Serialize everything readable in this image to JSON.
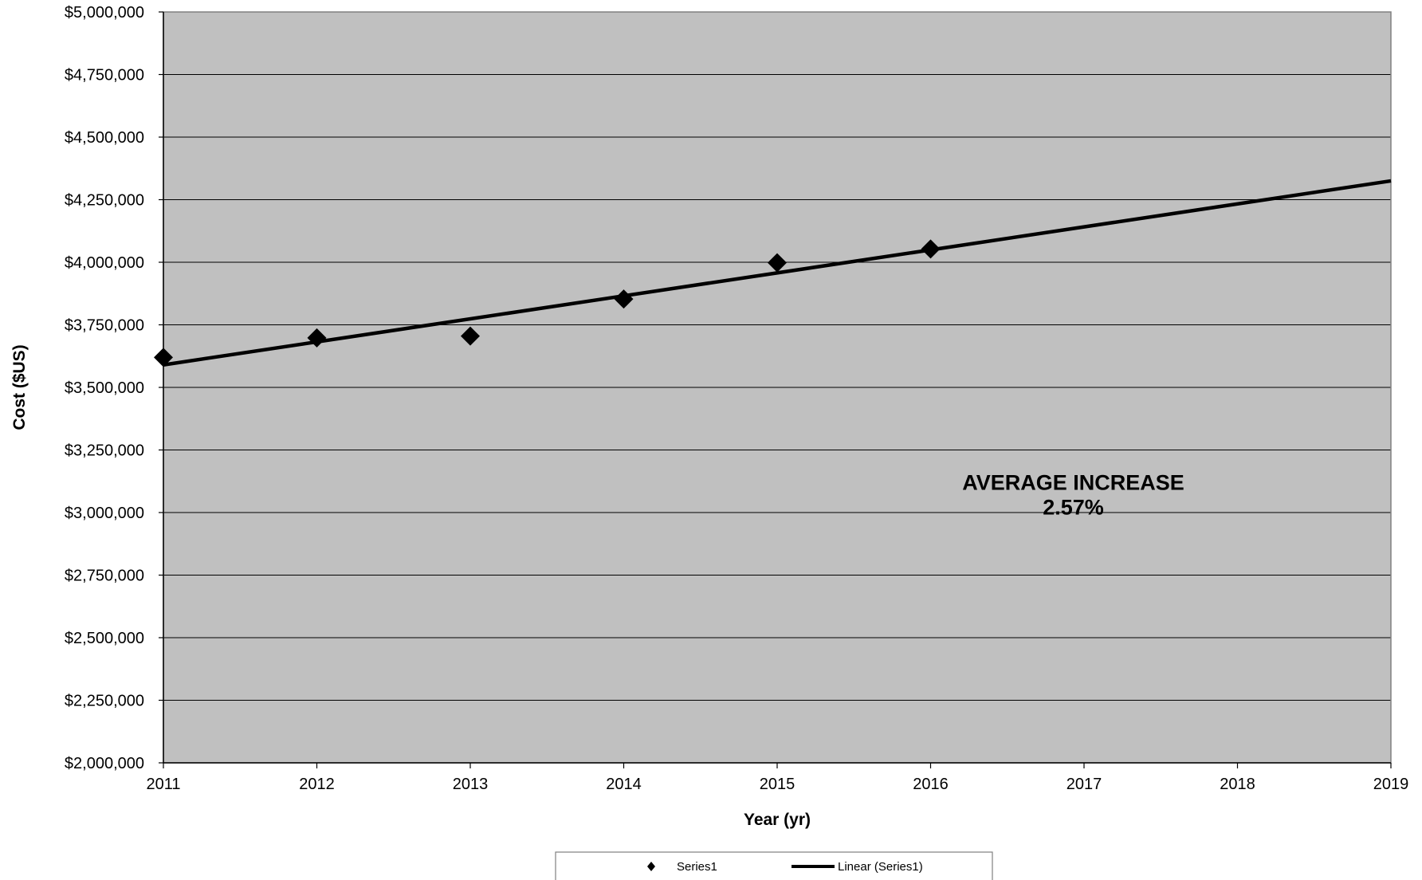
{
  "chart_data": {
    "type": "scatter",
    "title": "",
    "xlabel": "Year (yr)",
    "ylabel": "Cost ($US)",
    "xlim": [
      2011,
      2019
    ],
    "ylim": [
      2000000,
      5000000
    ],
    "x_ticks": [
      2011,
      2012,
      2013,
      2014,
      2015,
      2016,
      2017,
      2018,
      2019
    ],
    "x_tick_labels": [
      "2011",
      "2012",
      "2013",
      "2014",
      "2015",
      "2016",
      "2017",
      "2018",
      "2019"
    ],
    "y_ticks": [
      2000000,
      2250000,
      2500000,
      2750000,
      3000000,
      3250000,
      3500000,
      3750000,
      4000000,
      4250000,
      4500000,
      4750000,
      5000000
    ],
    "y_tick_labels": [
      "$2,000,000",
      "$2,250,000",
      "$2,500,000",
      "$2,750,000",
      "$3,000,000",
      "$3,250,000",
      "$3,500,000",
      "$3,750,000",
      "$4,000,000",
      "$4,250,000",
      "$4,500,000",
      "$4,750,000",
      "$5,000,000"
    ],
    "grid": true,
    "series": [
      {
        "name": "Series1",
        "marker": "diamond",
        "x": [
          2011,
          2012,
          2013,
          2014,
          2015,
          2016
        ],
        "y": [
          3620000,
          3698000,
          3705000,
          3853000,
          3998000,
          4053000
        ]
      }
    ],
    "trendline": {
      "name": "Linear (Series1)",
      "type": "linear",
      "x": [
        2011,
        2019
      ],
      "y": [
        3590000,
        4325000
      ]
    },
    "annotation": {
      "lines": [
        "AVERAGE INCREASE",
        "2.57%"
      ],
      "x": 2016.93,
      "y": 3090000
    },
    "legend": {
      "position": "bottom",
      "entries": [
        "Series1",
        "Linear (Series1)"
      ]
    },
    "colors": {
      "plot_background": "#c0c0c0",
      "gridline": "#000000",
      "marker": "#000000",
      "trendline": "#000000"
    }
  }
}
